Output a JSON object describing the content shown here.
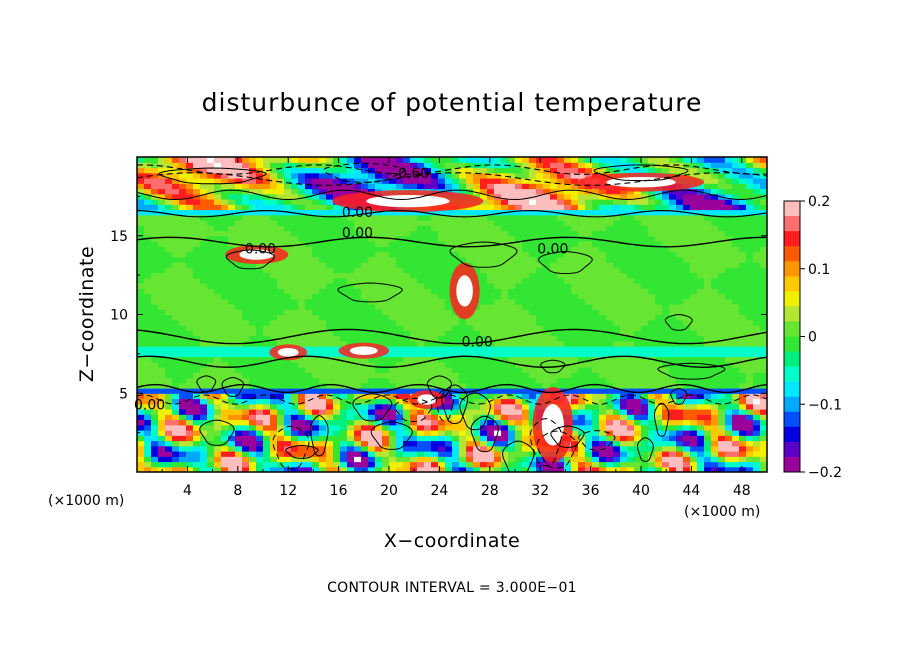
{
  "chart_data": {
    "type": "heatmap",
    "title": "disturbunce of potential temperature",
    "xlabel": "X−coordinate",
    "ylabel": "Z−coordinate",
    "x_unit": "(×1000 m)",
    "y_unit": "(×1000 m)",
    "xlim": [
      0,
      50
    ],
    "ylim": [
      0,
      20
    ],
    "x_ticks": [
      4,
      8,
      12,
      16,
      20,
      24,
      28,
      32,
      36,
      40,
      44,
      48
    ],
    "y_ticks": [
      5,
      10,
      15
    ],
    "colorbar": {
      "min": -0.2,
      "max": 0.2,
      "ticks": [
        -0.2,
        -0.1,
        0,
        0.1,
        0.2
      ],
      "tick_labels": [
        "−0.2",
        "−0.1",
        "0",
        "0.1",
        "0.2"
      ],
      "colors": [
        "#9a009a",
        "#5a00c8",
        "#0000e0",
        "#0050ff",
        "#00a8ff",
        "#00e8ff",
        "#00ffc8",
        "#00f080",
        "#33e633",
        "#66e633",
        "#b4e633",
        "#f0f000",
        "#ffc800",
        "#ff9600",
        "#ff5a00",
        "#ff1e1e",
        "#ff6e6e",
        "#ffbebe"
      ]
    },
    "contour_interval_text": "CONTOUR INTERVAL = 3.000E−01",
    "contour_labels": [
      {
        "text": "−0.60",
        "x": 21.5,
        "z": 19.0
      },
      {
        "text": "0.00",
        "x": 17.5,
        "z": 16.5
      },
      {
        "text": "0.00",
        "x": 17.5,
        "z": 15.2
      },
      {
        "text": "0.00",
        "x": 9.8,
        "z": 14.2
      },
      {
        "text": "0.00",
        "x": 33.0,
        "z": 14.2
      },
      {
        "text": "0.00",
        "x": 27.0,
        "z": 8.3
      },
      {
        "text": "0.00",
        "x": 1.0,
        "z": 4.3
      }
    ],
    "field_bands": [
      {
        "z0": 0,
        "z1": 5,
        "value": "turbulent"
      },
      {
        "z0": 5.0,
        "z1": 5.4,
        "value": -0.12
      },
      {
        "z0": 5.4,
        "z1": 7.2,
        "value": 0.0
      },
      {
        "z0": 7.2,
        "z1": 8.0,
        "value": -0.06
      },
      {
        "z0": 8.0,
        "z1": 15.0,
        "value": 0.0
      },
      {
        "z0": 15.0,
        "z1": 16.3,
        "value": 0.0
      },
      {
        "z0": 16.3,
        "z1": 16.8,
        "value": -0.07
      },
      {
        "z0": 16.8,
        "z1": 20.0,
        "value": "mixed"
      }
    ]
  }
}
